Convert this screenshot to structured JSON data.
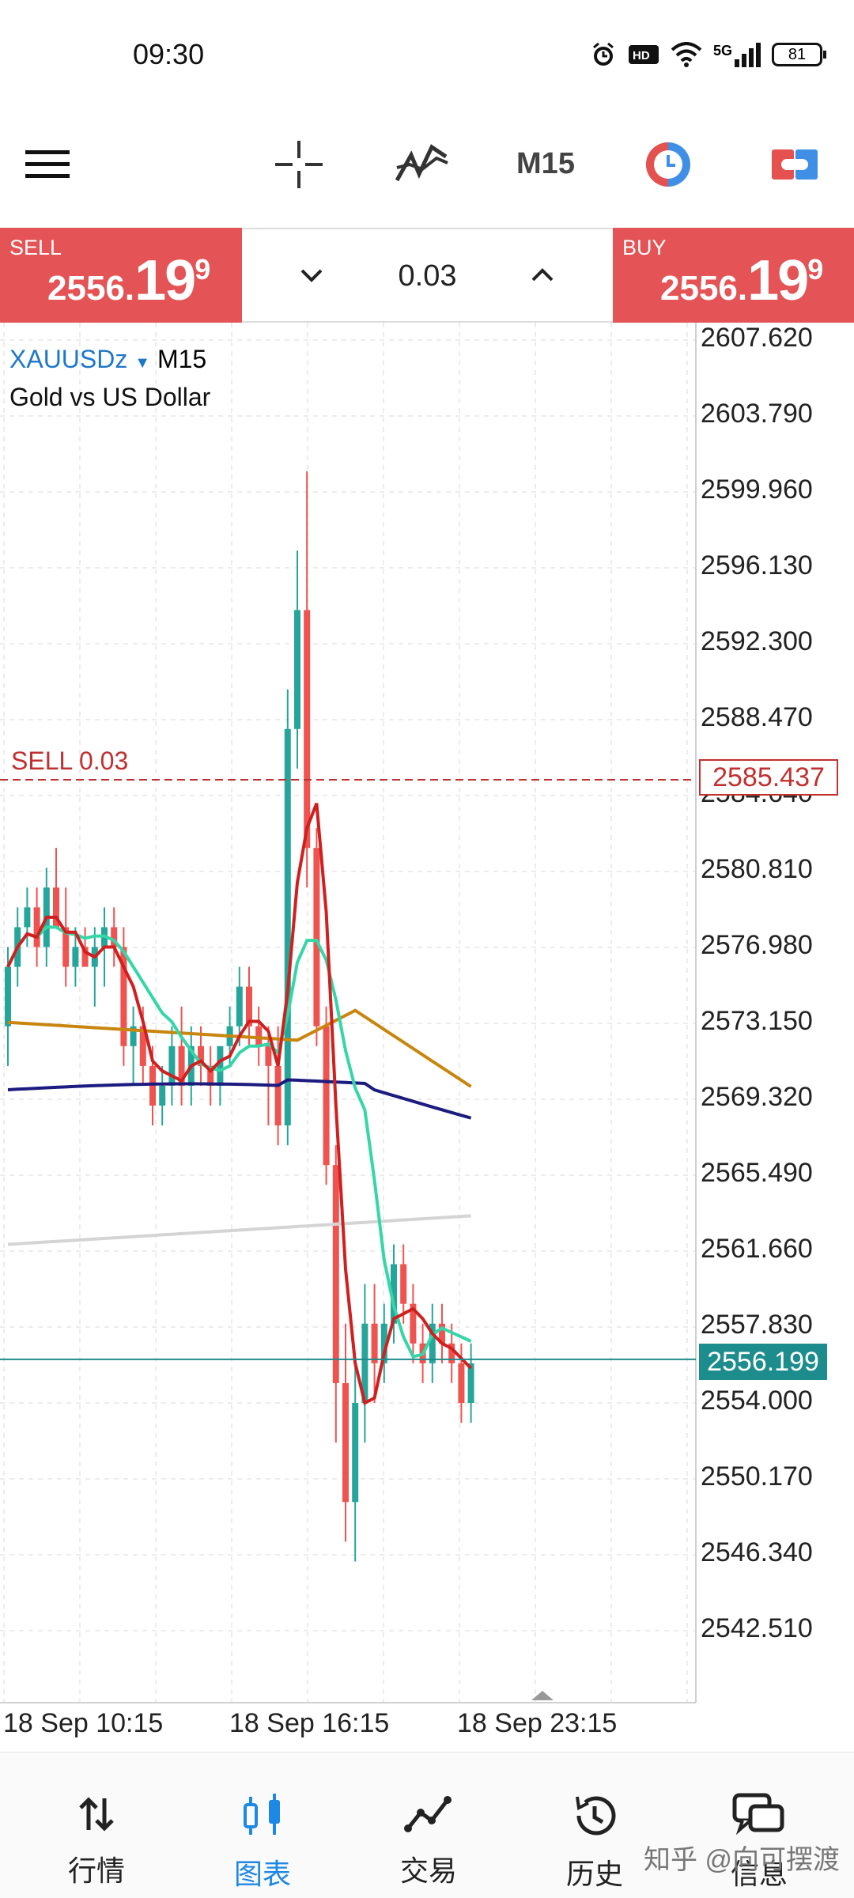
{
  "status_bar": {
    "time": "09:30",
    "network": "5G",
    "battery": "81"
  },
  "toolbar": {
    "timeframe": "M15"
  },
  "trade_panel": {
    "sell_label": "SELL",
    "sell_price_main": "2556.",
    "sell_price_big": "19",
    "sell_price_sup": "9",
    "buy_label": "BUY",
    "buy_price_main": "2556.",
    "buy_price_big": "19",
    "buy_price_sup": "9",
    "lot": "0.03"
  },
  "chart": {
    "symbol": "XAUUSDz",
    "timeframe": "M15",
    "description": "Gold vs US Dollar",
    "position_label": "SELL 0.03",
    "position_price": "2585.437",
    "current_price": "2556.199",
    "price_labels": [
      "2607.620",
      "2603.790",
      "2599.960",
      "2596.130",
      "2592.300",
      "2588.470",
      "2584.640",
      "2580.810",
      "2576.980",
      "2573.150",
      "2569.320",
      "2565.490",
      "2561.660",
      "2557.830",
      "2554.000",
      "2550.170",
      "2546.340",
      "2542.510"
    ],
    "time_labels": [
      "18 Sep 10:15",
      "18 Sep 16:15",
      "18 Sep 23:15"
    ]
  },
  "chart_data": {
    "type": "candlestick",
    "ylim": [
      2540,
      2609
    ],
    "candles": [
      [
        2573,
        2577,
        2571,
        2576
      ],
      [
        2576,
        2579,
        2575,
        2578
      ],
      [
        2578,
        2580,
        2577,
        2579
      ],
      [
        2579,
        2580,
        2576,
        2577
      ],
      [
        2577,
        2581,
        2576,
        2580
      ],
      [
        2580,
        2582,
        2578,
        2578
      ],
      [
        2578,
        2580,
        2575,
        2576
      ],
      [
        2576,
        2578,
        2575,
        2577
      ],
      [
        2577,
        2578,
        2576,
        2576
      ],
      [
        2576,
        2578,
        2574,
        2577
      ],
      [
        2577,
        2579,
        2575,
        2578
      ],
      [
        2578,
        2579,
        2576,
        2577
      ],
      [
        2577,
        2578,
        2571,
        2572
      ],
      [
        2572,
        2574,
        2570,
        2573
      ],
      [
        2573,
        2574,
        2570,
        2571
      ],
      [
        2571,
        2572,
        2568,
        2569
      ],
      [
        2569,
        2571,
        2568,
        2570
      ],
      [
        2570,
        2573,
        2569,
        2572
      ],
      [
        2572,
        2574,
        2569,
        2570
      ],
      [
        2570,
        2573,
        2569,
        2572
      ],
      [
        2572,
        2573,
        2570,
        2571
      ],
      [
        2571,
        2572,
        2569,
        2570
      ],
      [
        2570,
        2572,
        2569,
        2572
      ],
      [
        2572,
        2574,
        2571,
        2573
      ],
      [
        2573,
        2576,
        2572,
        2575
      ],
      [
        2575,
        2576,
        2572,
        2573
      ],
      [
        2573,
        2574,
        2571,
        2572
      ],
      [
        2572,
        2573,
        2568,
        2571
      ],
      [
        2571,
        2573,
        2567,
        2568
      ],
      [
        2568,
        2590,
        2567,
        2588
      ],
      [
        2588,
        2597,
        2586,
        2594
      ],
      [
        2594,
        2601,
        2580,
        2582
      ],
      [
        2582,
        2583,
        2572,
        2573
      ],
      [
        2573,
        2574,
        2565,
        2566
      ],
      [
        2566,
        2567,
        2552,
        2555
      ],
      [
        2555,
        2558,
        2547,
        2549
      ],
      [
        2549,
        2556,
        2546,
        2554
      ],
      [
        2554,
        2560,
        2552,
        2558
      ],
      [
        2558,
        2560,
        2554,
        2556
      ],
      [
        2556,
        2559,
        2555,
        2558
      ],
      [
        2558,
        2562,
        2557,
        2561
      ],
      [
        2561,
        2562,
        2558,
        2559
      ],
      [
        2559,
        2560,
        2556,
        2557
      ],
      [
        2557,
        2558,
        2555,
        2556
      ],
      [
        2556,
        2559,
        2555,
        2558
      ],
      [
        2558,
        2559,
        2556,
        2557
      ],
      [
        2557,
        2558,
        2555,
        2556
      ],
      [
        2556,
        2557,
        2553,
        2554
      ],
      [
        2554,
        2557,
        2553,
        2556
      ]
    ],
    "ma_fast_color": "#d01f1f",
    "ma_mid_color": "#35d6a8",
    "ma_slow1_color": "#c8860f",
    "ma_slow2_color": "#1b1b80",
    "ma_long_color": "#d4d4d4",
    "up_color": "#26a69a",
    "down_color": "#ef5350"
  },
  "bottom_nav": [
    {
      "label": "行情",
      "icon": "quotes-icon"
    },
    {
      "label": "图表",
      "icon": "chart-icon"
    },
    {
      "label": "交易",
      "icon": "trade-icon"
    },
    {
      "label": "历史",
      "icon": "history-icon"
    },
    {
      "label": "信息",
      "icon": "messages-icon"
    }
  ],
  "watermark": "知乎 @向可摆渡"
}
